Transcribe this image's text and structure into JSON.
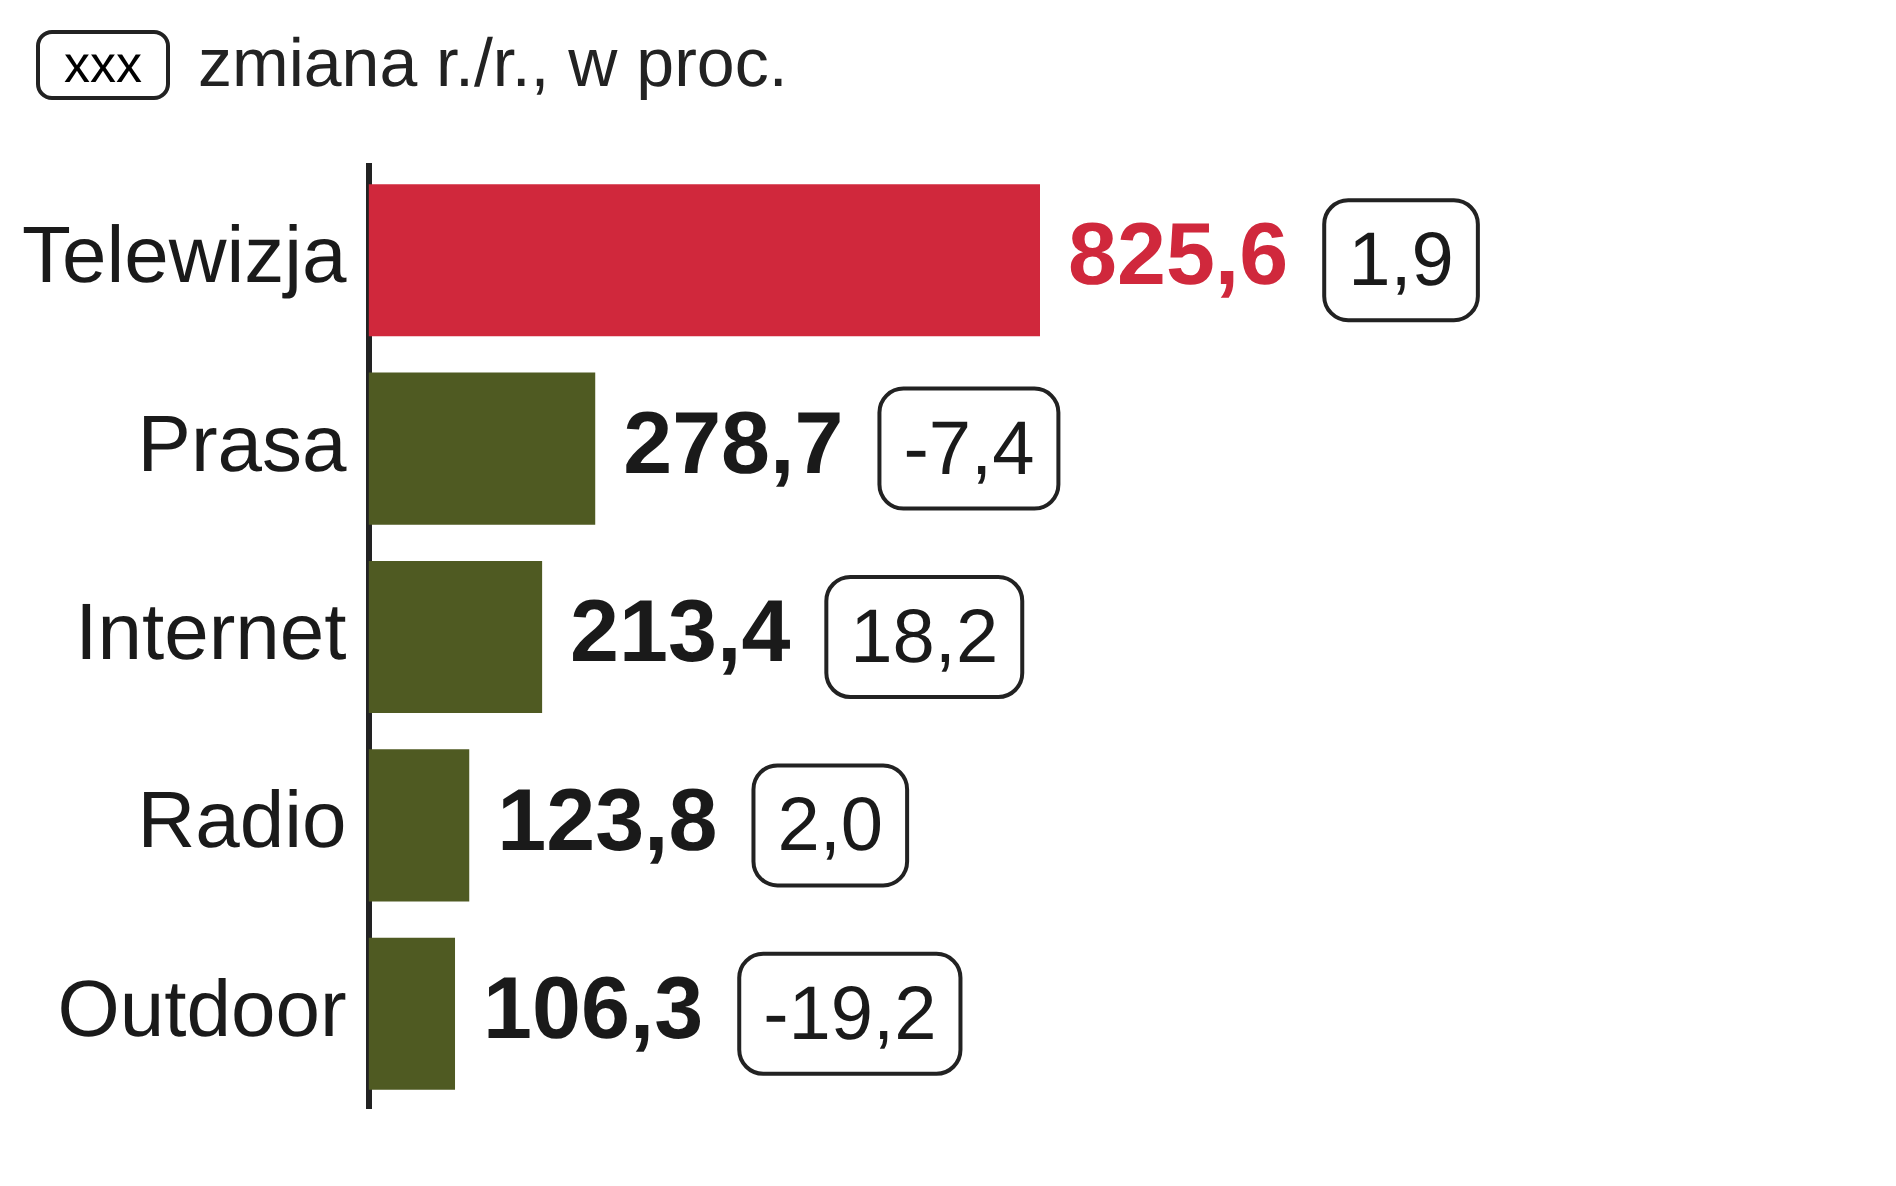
{
  "chart_data": {
    "type": "bar",
    "orientation": "horizontal",
    "subtitle": "zmiana r./r., w proc.",
    "categories": [
      "Telewizja",
      "Prasa",
      "Internet",
      "Radio",
      "Outdoor"
    ],
    "values": [
      825.6,
      278.7,
      213.4,
      123.8,
      106.3
    ],
    "value_labels": [
      "825,6",
      "278,7",
      "213,4",
      "123,8",
      "106,3"
    ],
    "colors": [
      "#d0283c",
      "#4f5a22",
      "#4f5a22",
      "#4f5a22",
      "#4f5a22"
    ],
    "tick_labels": "y",
    "annotations": [
      "xxx",
      "1,9",
      "-7,4",
      "18,2",
      "2,0",
      "-19,2"
    ]
  }
}
